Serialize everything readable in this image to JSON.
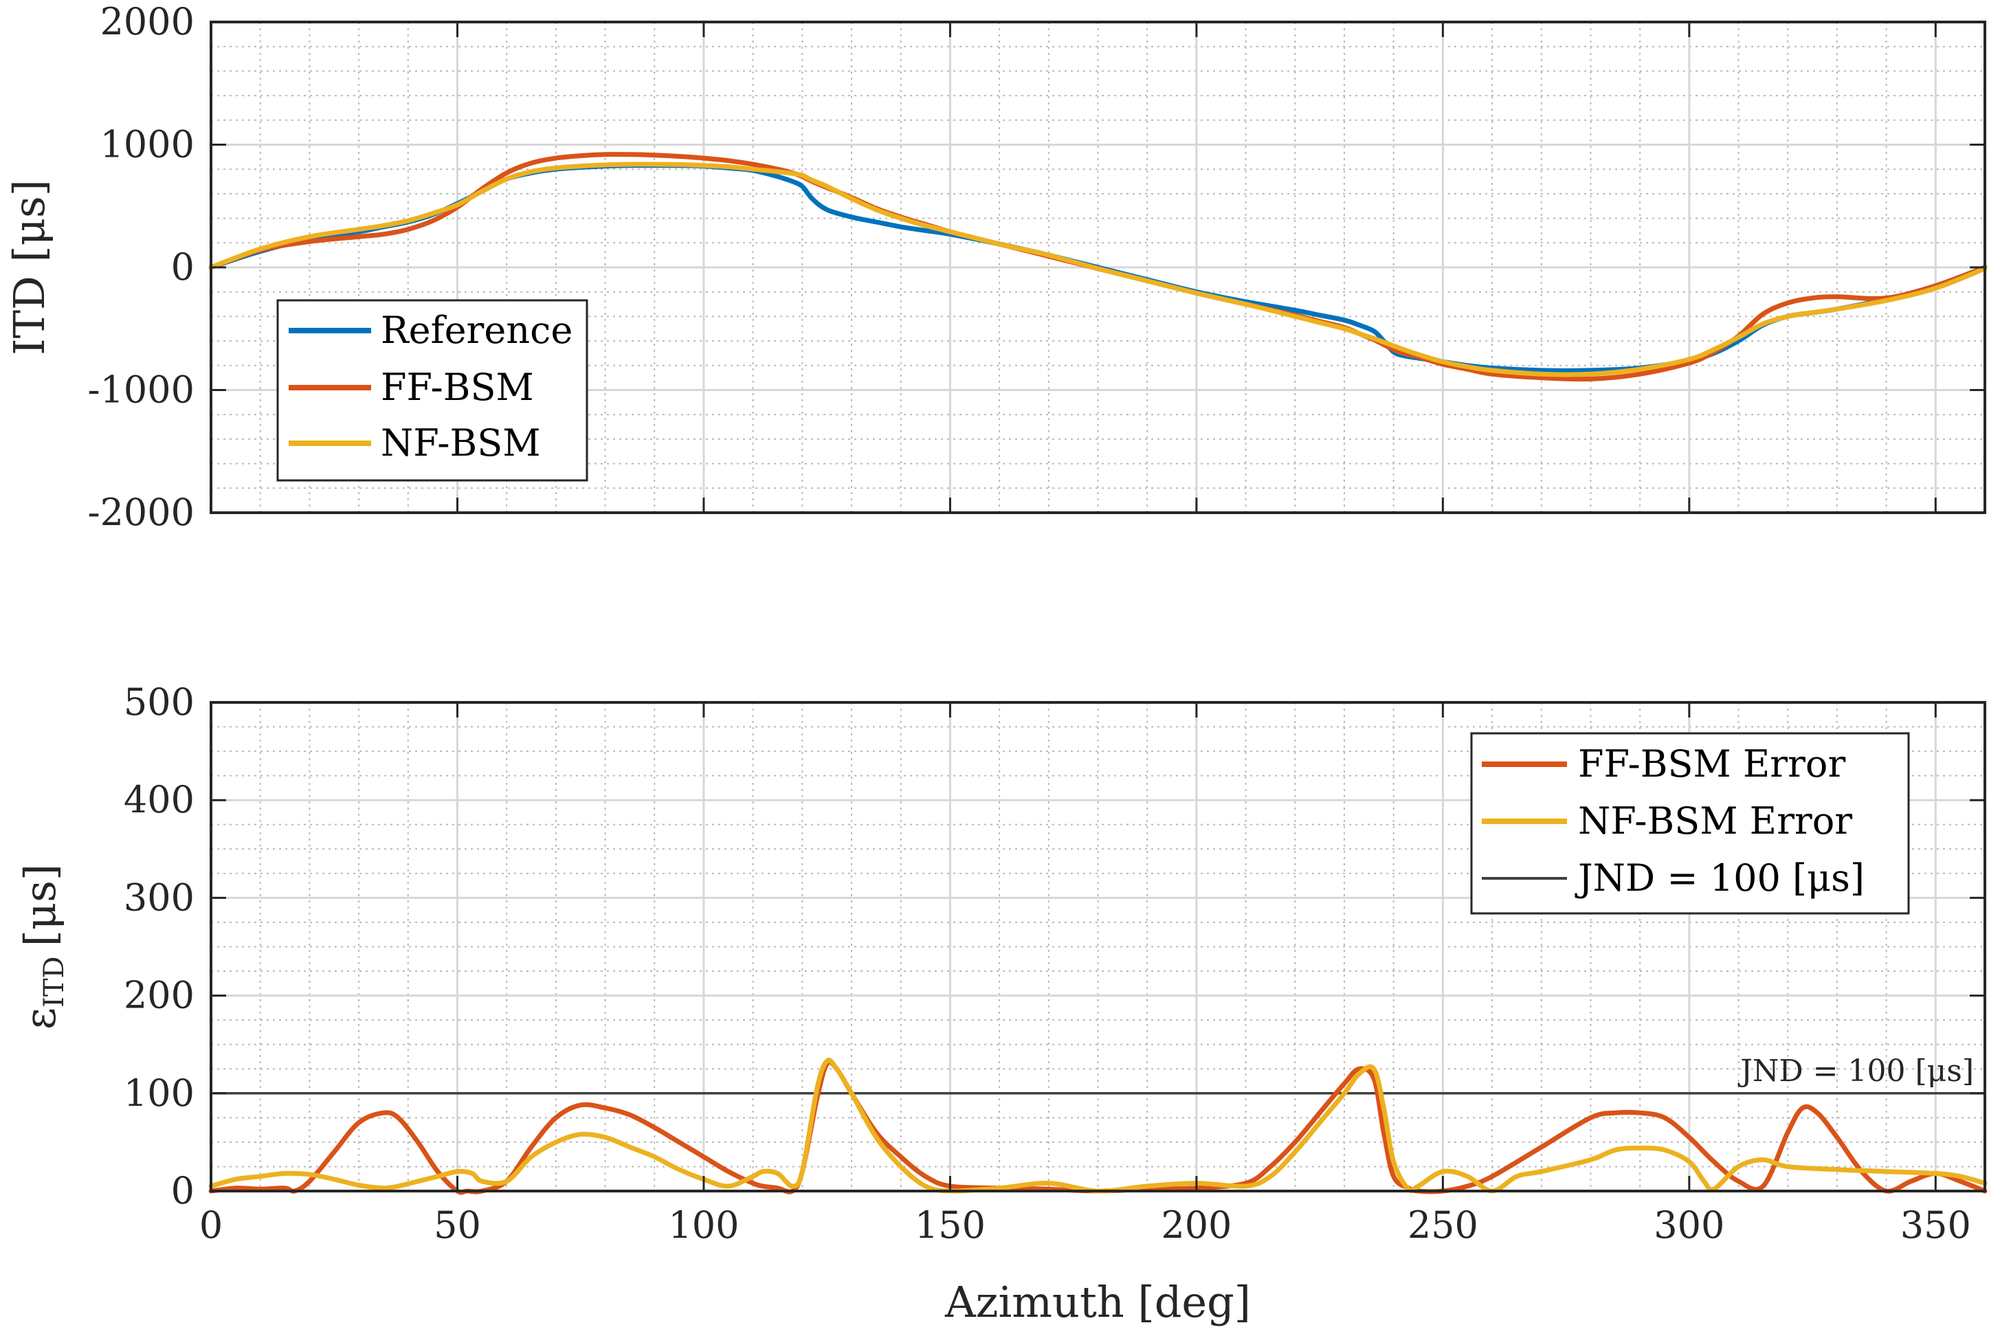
{
  "colors": {
    "reference": "#0072BD",
    "ff": "#D95319",
    "nf": "#EDB120",
    "jnd": "#404040",
    "axis": "#262626",
    "grid": "#d7d7d7"
  },
  "chart_data": [
    {
      "type": "line",
      "ylabel": "ITD [μs]",
      "xlabel": "",
      "xlim": [
        0,
        360
      ],
      "ylim": [
        -2000,
        2000
      ],
      "xticks": [
        "0",
        "50",
        "100",
        "150",
        "200",
        "250",
        "300",
        "350"
      ],
      "yticks": [
        "2000",
        "1000",
        "0",
        "-1000",
        "-2000"
      ],
      "ytick_values": [
        2000,
        1000,
        0,
        -1000,
        -2000
      ],
      "grid": true,
      "legend_position": "lower-left",
      "x": [
        0,
        10,
        20,
        30,
        35,
        40,
        45,
        50,
        55,
        60,
        65,
        70,
        75,
        80,
        85,
        90,
        95,
        100,
        105,
        110,
        115,
        118,
        120,
        122,
        125,
        130,
        135,
        140,
        145,
        150,
        160,
        170,
        180,
        190,
        200,
        210,
        220,
        225,
        230,
        233,
        236,
        238,
        240,
        242,
        245,
        250,
        255,
        260,
        270,
        280,
        290,
        300,
        305,
        310,
        315,
        320,
        325,
        330,
        340,
        350,
        360
      ],
      "series": [
        {
          "name": "Reference",
          "color_key": "reference",
          "values": [
            0,
            130,
            230,
            290,
            330,
            370,
            430,
            520,
            620,
            720,
            770,
            800,
            815,
            825,
            830,
            830,
            830,
            825,
            810,
            790,
            740,
            700,
            660,
            560,
            470,
            410,
            370,
            330,
            300,
            270,
            190,
            100,
            0,
            -100,
            -200,
            -280,
            -350,
            -390,
            -430,
            -470,
            -520,
            -600,
            -690,
            -720,
            -740,
            -770,
            -800,
            -820,
            -840,
            -840,
            -820,
            -760,
            -700,
            -600,
            -470,
            -400,
            -370,
            -340,
            -260,
            -150,
            0
          ]
        },
        {
          "name": "FF-BSM",
          "color_key": "ff",
          "values": [
            0,
            140,
            210,
            250,
            270,
            310,
            380,
            490,
            640,
            770,
            850,
            890,
            910,
            920,
            920,
            915,
            905,
            890,
            870,
            840,
            800,
            770,
            740,
            700,
            650,
            570,
            480,
            410,
            350,
            290,
            190,
            90,
            -10,
            -110,
            -210,
            -300,
            -390,
            -440,
            -490,
            -540,
            -590,
            -630,
            -670,
            -700,
            -730,
            -790,
            -830,
            -870,
            -900,
            -910,
            -870,
            -780,
            -690,
            -560,
            -380,
            -290,
            -250,
            -240,
            -250,
            -150,
            0
          ]
        },
        {
          "name": "NF-BSM",
          "color_key": "nf",
          "values": [
            0,
            150,
            250,
            310,
            340,
            380,
            440,
            510,
            620,
            720,
            780,
            810,
            825,
            835,
            840,
            840,
            838,
            830,
            820,
            800,
            780,
            765,
            750,
            710,
            660,
            560,
            470,
            400,
            340,
            290,
            190,
            100,
            -10,
            -110,
            -210,
            -300,
            -400,
            -450,
            -500,
            -540,
            -580,
            -610,
            -640,
            -670,
            -710,
            -770,
            -810,
            -840,
            -870,
            -870,
            -830,
            -750,
            -670,
            -570,
            -460,
            -400,
            -370,
            -340,
            -270,
            -170,
            -10
          ]
        }
      ],
      "legend": [
        "Reference",
        "FF-BSM",
        "NF-BSM"
      ]
    },
    {
      "type": "line",
      "ylabel": "ε_ITD [μs]",
      "ylabel_main": "ε",
      "ylabel_sub": "ITD",
      "ylabel_unit": "[μs]",
      "xlabel": "Azimuth [deg]",
      "xlim": [
        0,
        360
      ],
      "ylim": [
        0,
        500
      ],
      "xticks": [
        "0",
        "50",
        "100",
        "150",
        "200",
        "250",
        "300",
        "350"
      ],
      "yticks": [
        "500",
        "400",
        "300",
        "200",
        "100",
        "0"
      ],
      "ytick_values": [
        500,
        400,
        300,
        200,
        100,
        0
      ],
      "grid": true,
      "legend_position": "top-right",
      "jnd_value": 100,
      "jnd_annotation": "JND = 100 [μs]",
      "series": [
        {
          "name": "FF-BSM Error",
          "color_key": "ff",
          "x": [
            0,
            5,
            10,
            15,
            17,
            20,
            25,
            30,
            35,
            38,
            42,
            46,
            50,
            52,
            55,
            60,
            65,
            70,
            75,
            80,
            85,
            90,
            95,
            100,
            105,
            110,
            112,
            115,
            118,
            120,
            123,
            125,
            127,
            130,
            135,
            140,
            145,
            150,
            160,
            170,
            180,
            190,
            200,
            210,
            215,
            220,
            225,
            230,
            233,
            236,
            238,
            240,
            243,
            245,
            250,
            255,
            260,
            270,
            280,
            285,
            290,
            295,
            300,
            305,
            310,
            315,
            320,
            323,
            326,
            330,
            335,
            340,
            345,
            350,
            355,
            360
          ],
          "values": [
            0,
            3,
            2,
            3,
            0,
            10,
            40,
            70,
            80,
            75,
            50,
            20,
            0,
            0,
            0,
            10,
            45,
            75,
            88,
            85,
            78,
            65,
            50,
            35,
            20,
            8,
            5,
            3,
            0,
            20,
            95,
            130,
            125,
            100,
            60,
            35,
            15,
            5,
            3,
            2,
            0,
            2,
            3,
            8,
            25,
            50,
            80,
            110,
            125,
            115,
            60,
            15,
            3,
            0,
            0,
            5,
            15,
            45,
            75,
            80,
            80,
            75,
            55,
            30,
            10,
            5,
            60,
            85,
            80,
            55,
            20,
            0,
            10,
            18,
            10,
            0
          ]
        },
        {
          "name": "NF-BSM Error",
          "color_key": "nf",
          "x": [
            0,
            5,
            10,
            15,
            20,
            25,
            30,
            35,
            38,
            42,
            46,
            50,
            53,
            55,
            60,
            65,
            70,
            75,
            80,
            85,
            90,
            95,
            100,
            105,
            110,
            112,
            115,
            118,
            120,
            123,
            125,
            127,
            130,
            135,
            140,
            145,
            150,
            160,
            170,
            180,
            190,
            200,
            210,
            215,
            220,
            225,
            230,
            233,
            236,
            238,
            240,
            243,
            245,
            250,
            255,
            260,
            265,
            270,
            280,
            285,
            290,
            295,
            300,
            303,
            305,
            310,
            315,
            320,
            330,
            340,
            350,
            355,
            360
          ],
          "values": [
            5,
            12,
            15,
            18,
            17,
            12,
            6,
            3,
            5,
            10,
            15,
            20,
            18,
            10,
            10,
            35,
            50,
            58,
            55,
            45,
            35,
            22,
            12,
            5,
            15,
            20,
            18,
            5,
            20,
            105,
            133,
            125,
            100,
            55,
            25,
            5,
            0,
            3,
            8,
            0,
            5,
            8,
            5,
            15,
            40,
            70,
            100,
            120,
            125,
            85,
            30,
            2,
            5,
            20,
            15,
            0,
            15,
            20,
            32,
            42,
            44,
            42,
            30,
            10,
            2,
            25,
            32,
            25,
            22,
            20,
            18,
            15,
            8
          ]
        }
      ],
      "legend": [
        "FF-BSM Error",
        "NF-BSM Error",
        "JND = 100 [μs]"
      ]
    }
  ]
}
